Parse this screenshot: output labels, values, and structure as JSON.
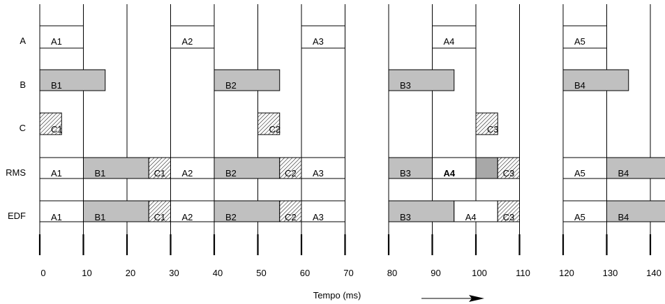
{
  "rows": [
    {
      "key": "A",
      "label": "A"
    },
    {
      "key": "B",
      "label": "B"
    },
    {
      "key": "C",
      "label": "C"
    },
    {
      "key": "RMS",
      "label": "RMS"
    },
    {
      "key": "EDF",
      "label": "EDF"
    }
  ],
  "axis": {
    "title": "Tempo (ms)",
    "ticks": [
      "0",
      "10",
      "20",
      "30",
      "40",
      "50",
      "60",
      "70",
      "80",
      "90",
      "100",
      "110",
      "120",
      "130",
      "140"
    ],
    "range_ms": [
      0,
      145
    ],
    "gaps_ms": [
      [
        70,
        80
      ],
      [
        110,
        120
      ]
    ]
  },
  "colors": {
    "line": "#000000",
    "b_fill": "#c0c0c0",
    "dark_fill": "#a8a8a8",
    "white": "#ffffff"
  },
  "tasks": {
    "A": [
      {
        "label": "A1",
        "start": 0,
        "end": 10
      },
      {
        "label": "A2",
        "start": 30,
        "end": 40
      },
      {
        "label": "A3",
        "start": 60,
        "end": 70
      },
      {
        "label": "A4",
        "start": 90,
        "end": 100
      },
      {
        "label": "A5",
        "start": 120,
        "end": 130
      }
    ],
    "B": [
      {
        "label": "B1",
        "start": 0,
        "end": 15
      },
      {
        "label": "B2",
        "start": 40,
        "end": 55
      },
      {
        "label": "B3",
        "start": 80,
        "end": 95
      },
      {
        "label": "B4",
        "start": 120,
        "end": 135
      }
    ],
    "C": [
      {
        "label": "C1",
        "start": 0,
        "end": 5
      },
      {
        "label": "C2",
        "start": 50,
        "end": 55
      },
      {
        "label": "C3",
        "start": 100,
        "end": 105
      }
    ]
  },
  "schedules": {
    "RMS": [
      {
        "label": "A1",
        "start": 0,
        "end": 10,
        "fill": "white"
      },
      {
        "label": "B1",
        "start": 10,
        "end": 25,
        "fill": "gray"
      },
      {
        "label": "C1",
        "start": 25,
        "end": 30,
        "fill": "hatch"
      },
      {
        "label": "A2",
        "start": 30,
        "end": 40,
        "fill": "white"
      },
      {
        "label": "B2",
        "start": 40,
        "end": 55,
        "fill": "gray"
      },
      {
        "label": "C2",
        "start": 55,
        "end": 60,
        "fill": "hatch"
      },
      {
        "label": "A3",
        "start": 60,
        "end": 70,
        "fill": "white"
      },
      {
        "label": "B3",
        "start": 80,
        "end": 90,
        "fill": "gray"
      },
      {
        "label": "A4",
        "start": 90,
        "end": 100,
        "fill": "white",
        "bold": true
      },
      {
        "label": "",
        "start": 100,
        "end": 105,
        "fill": "dark"
      },
      {
        "label": "C3",
        "start": 105,
        "end": 110,
        "fill": "hatch"
      },
      {
        "label": "A5",
        "start": 120,
        "end": 130,
        "fill": "white"
      },
      {
        "label": "B4",
        "start": 130,
        "end": 145,
        "fill": "gray"
      }
    ],
    "EDF": [
      {
        "label": "A1",
        "start": 0,
        "end": 10,
        "fill": "white"
      },
      {
        "label": "B1",
        "start": 10,
        "end": 25,
        "fill": "gray"
      },
      {
        "label": "C1",
        "start": 25,
        "end": 30,
        "fill": "hatch"
      },
      {
        "label": "A2",
        "start": 30,
        "end": 40,
        "fill": "white"
      },
      {
        "label": "B2",
        "start": 40,
        "end": 55,
        "fill": "gray"
      },
      {
        "label": "C2",
        "start": 55,
        "end": 60,
        "fill": "hatch"
      },
      {
        "label": "A3",
        "start": 60,
        "end": 70,
        "fill": "white"
      },
      {
        "label": "B3",
        "start": 80,
        "end": 95,
        "fill": "gray"
      },
      {
        "label": "A4",
        "start": 95,
        "end": 105,
        "fill": "white"
      },
      {
        "label": "C3",
        "start": 105,
        "end": 110,
        "fill": "hatch"
      },
      {
        "label": "A5",
        "start": 120,
        "end": 130,
        "fill": "white"
      },
      {
        "label": "B4",
        "start": 130,
        "end": 145,
        "fill": "gray"
      }
    ]
  }
}
